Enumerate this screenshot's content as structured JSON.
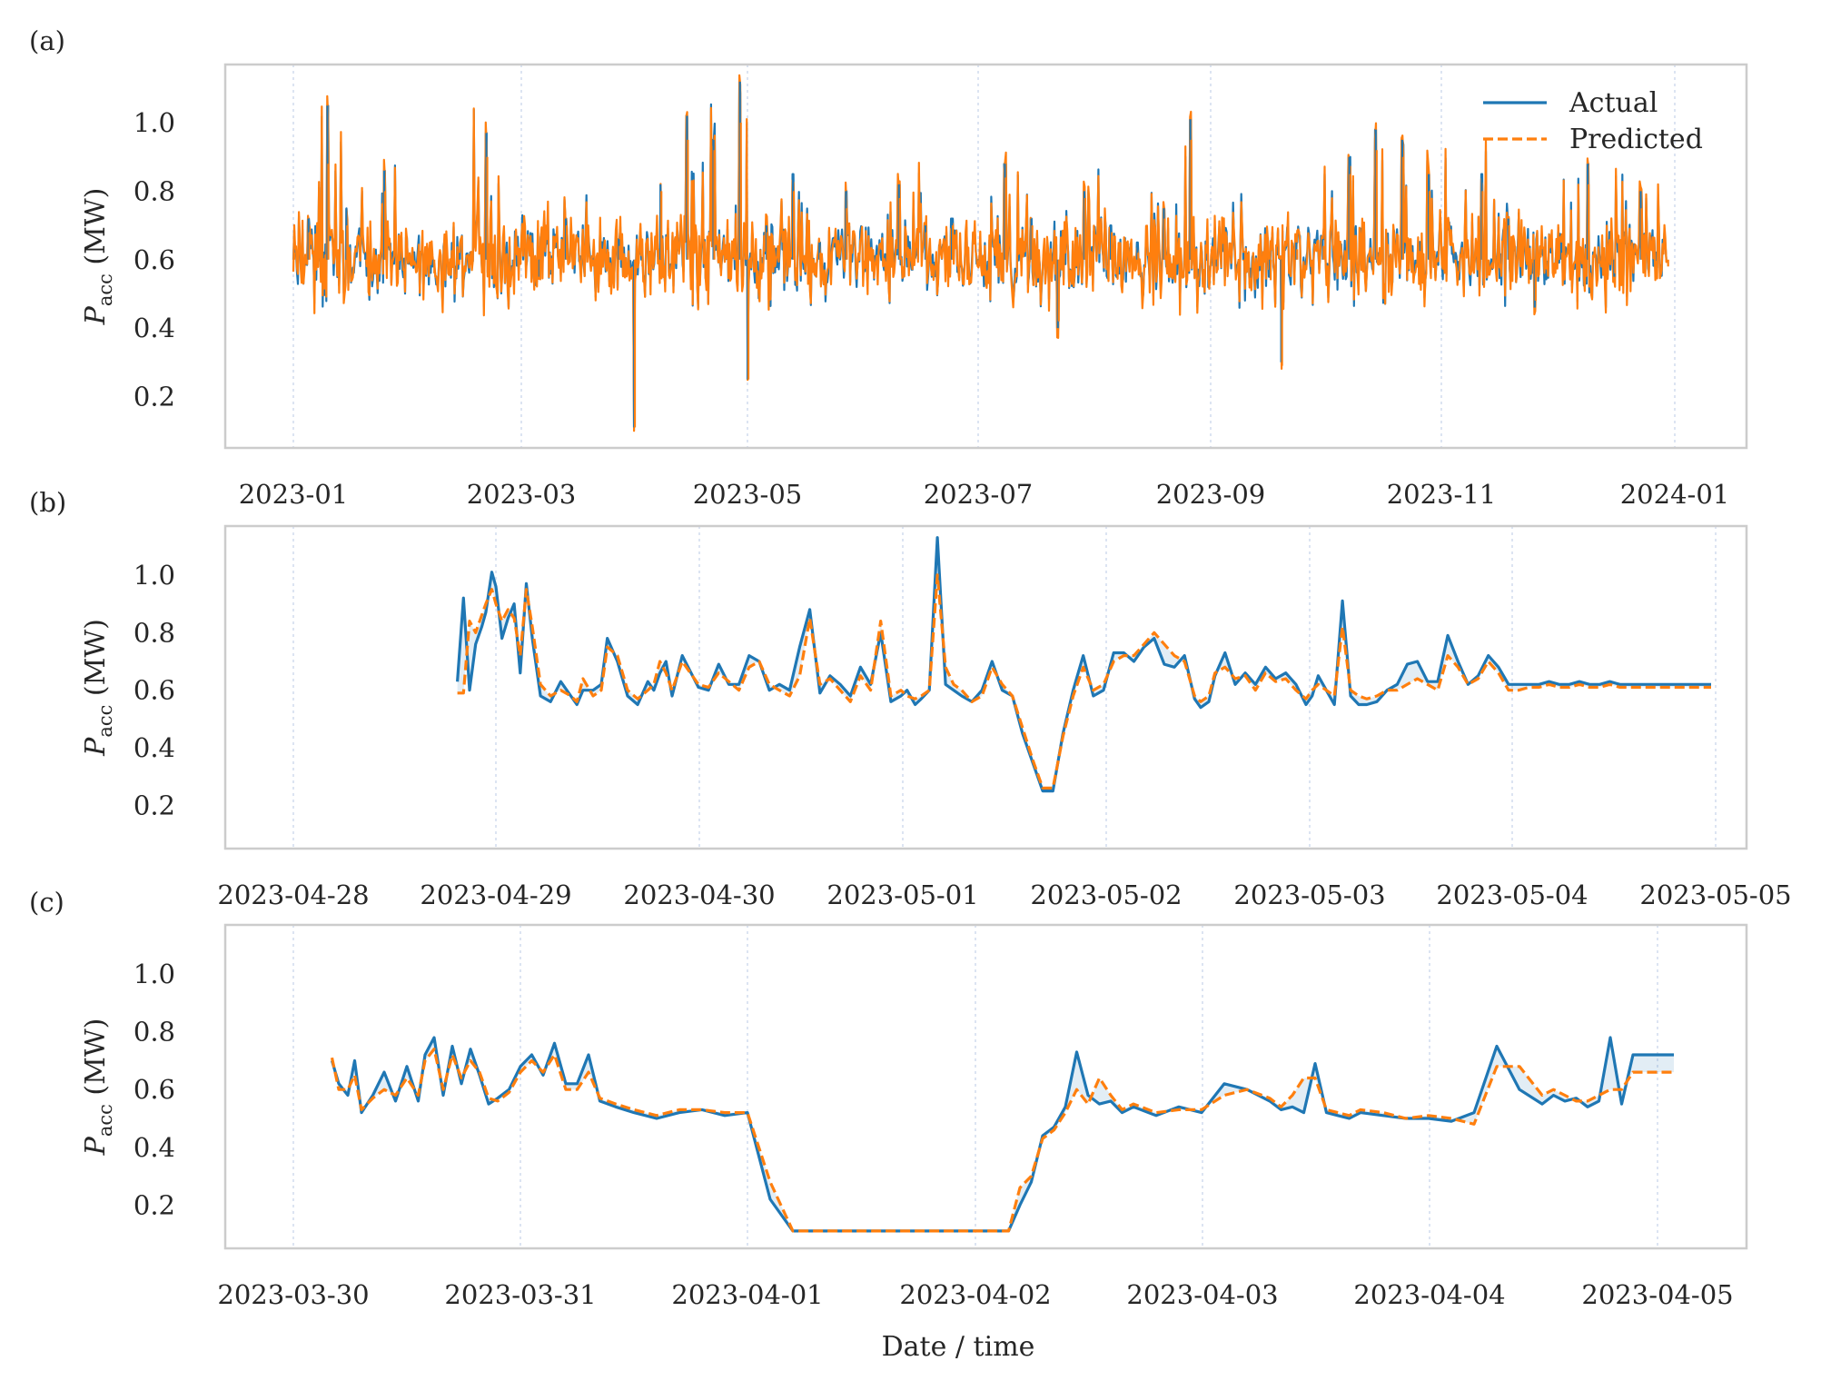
{
  "figure": {
    "xlabel": "Date / time",
    "ylabel_main": "P",
    "ylabel_sub": "acc",
    "ylabel_unit": " (MW)"
  },
  "colors": {
    "actual": "#1f77b4",
    "predicted": "#ff7f0e"
  },
  "chart_data": [
    {
      "panel": "(a)",
      "type": "line",
      "xlabel": "",
      "ylabel": "P_acc (MW)",
      "ylim": [
        0.05,
        1.17
      ],
      "yticks": [
        0.2,
        0.4,
        0.6,
        0.8,
        1.0
      ],
      "xticks": [
        "2023-01",
        "2023-03",
        "2023-05",
        "2023-07",
        "2023-09",
        "2023-11",
        "2024-01"
      ],
      "grid": "vertical-dotted",
      "legend": {
        "position": "top-right",
        "entries": [
          "Actual",
          "Predicted"
        ]
      },
      "x": [
        "2023-01-01",
        "2023-01-05",
        "2023-01-10",
        "2023-01-15",
        "2023-01-20",
        "2023-01-25",
        "2023-02-01",
        "2023-02-07",
        "2023-02-14",
        "2023-02-21",
        "2023-02-28",
        "2023-03-07",
        "2023-03-14",
        "2023-03-21",
        "2023-03-28",
        "2023-04-01",
        "2023-04-03",
        "2023-04-08",
        "2023-04-15",
        "2023-04-22",
        "2023-04-29",
        "2023-05-01",
        "2023-05-06",
        "2023-05-13",
        "2023-05-20",
        "2023-05-27",
        "2023-06-03",
        "2023-06-10",
        "2023-06-17",
        "2023-06-24",
        "2023-07-01",
        "2023-07-08",
        "2023-07-15",
        "2023-07-22",
        "2023-07-29",
        "2023-08-05",
        "2023-08-12",
        "2023-08-19",
        "2023-08-26",
        "2023-09-02",
        "2023-09-09",
        "2023-09-16",
        "2023-09-19",
        "2023-09-23",
        "2023-09-30",
        "2023-10-07",
        "2023-10-14",
        "2023-10-21",
        "2023-10-28",
        "2023-11-04",
        "2023-11-11",
        "2023-11-18",
        "2023-11-25",
        "2023-12-02",
        "2023-12-09",
        "2023-12-16",
        "2023-12-23",
        "2023-12-30"
      ],
      "series": [
        {
          "name": "Actual",
          "values": [
            0.6,
            0.72,
            1.05,
            0.75,
            0.62,
            0.86,
            0.6,
            0.58,
            0.62,
            0.97,
            0.58,
            0.55,
            0.72,
            0.6,
            0.66,
            0.11,
            0.6,
            0.82,
            1.02,
            0.95,
            1.12,
            0.25,
            0.7,
            0.85,
            0.65,
            0.8,
            0.6,
            0.82,
            0.7,
            0.72,
            0.6,
            0.88,
            0.72,
            0.4,
            0.8,
            0.7,
            0.65,
            0.75,
            1.01,
            0.58,
            0.62,
            0.55,
            0.3,
            0.65,
            0.66,
            0.9,
            0.98,
            0.95,
            0.85,
            0.62,
            0.85,
            0.72,
            0.46,
            0.65,
            0.88,
            0.55,
            0.8,
            0.6
          ]
        },
        {
          "name": "Predicted",
          "values": [
            0.62,
            0.68,
            0.88,
            0.7,
            0.6,
            0.8,
            0.58,
            0.56,
            0.6,
            0.9,
            0.56,
            0.54,
            0.7,
            0.58,
            0.64,
            0.11,
            0.58,
            0.8,
            0.95,
            0.92,
            1.0,
            0.25,
            0.68,
            0.8,
            0.62,
            0.75,
            0.58,
            0.78,
            0.68,
            0.7,
            0.58,
            0.84,
            0.7,
            0.42,
            0.78,
            0.68,
            0.62,
            0.72,
            0.95,
            0.57,
            0.6,
            0.54,
            0.29,
            0.63,
            0.64,
            0.85,
            0.92,
            0.9,
            0.8,
            0.6,
            0.8,
            0.7,
            0.48,
            0.62,
            0.82,
            0.56,
            0.75,
            0.58
          ]
        }
      ]
    },
    {
      "panel": "(b)",
      "type": "line",
      "xlabel": "",
      "ylabel": "P_acc (MW)",
      "ylim": [
        0.05,
        1.17
      ],
      "yticks": [
        0.2,
        0.4,
        0.6,
        0.8,
        1.0
      ],
      "xticks": [
        "2023-04-28",
        "2023-04-29",
        "2023-04-30",
        "2023-05-01",
        "2023-05-02",
        "2023-05-03",
        "2023-05-04",
        "2023-05-05"
      ],
      "grid": "vertical-dotted",
      "x_days_from_first_tick": [
        0.81,
        0.84,
        0.87,
        0.9,
        0.93,
        0.95,
        0.98,
        1.0,
        1.03,
        1.06,
        1.09,
        1.12,
        1.15,
        1.18,
        1.22,
        1.27,
        1.32,
        1.37,
        1.4,
        1.43,
        1.48,
        1.52,
        1.55,
        1.6,
        1.65,
        1.7,
        1.75,
        1.78,
        1.81,
        1.84,
        1.87,
        1.92,
        2.0,
        2.05,
        2.1,
        2.15,
        2.2,
        2.25,
        2.3,
        2.35,
        2.4,
        2.45,
        2.5,
        2.55,
        2.6,
        2.65,
        2.7,
        2.75,
        2.8,
        2.85,
        2.9,
        2.95,
        3.0,
        3.03,
        3.07,
        3.1,
        3.14,
        3.18,
        3.22,
        3.26,
        3.3,
        3.35,
        3.4,
        3.45,
        3.5,
        3.55,
        3.6,
        3.65,
        3.7,
        3.75,
        3.8,
        3.85,
        3.9,
        3.95,
        4.0,
        4.05,
        4.1,
        4.15,
        4.2,
        4.25,
        4.3,
        4.35,
        4.4,
        4.45,
        4.48,
        4.52,
        4.55,
        4.6,
        4.65,
        4.7,
        4.75,
        4.8,
        4.85,
        4.9,
        4.95,
        5.0,
        5.03,
        5.06,
        5.1,
        5.14,
        5.18,
        5.22,
        5.26,
        5.3,
        5.35,
        5.4,
        5.45,
        5.5,
        5.55,
        5.6,
        5.65,
        5.7,
        5.75,
        5.8,
        5.85,
        5.9,
        5.95,
        6.0,
        6.05,
        6.1,
        6.15,
        6.2,
        6.25,
        6.3,
        6.35,
        6.4,
        6.45,
        6.5,
        6.55,
        6.6,
        6.65,
        6.7,
        6.75,
        6.8,
        6.85,
        6.9,
        6.95,
        7.0
      ],
      "series": [
        {
          "name": "Actual",
          "values": [
            0.63,
            0.92,
            0.6,
            0.76,
            0.82,
            0.87,
            1.01,
            0.96,
            0.78,
            0.85,
            0.9,
            0.66,
            0.97,
            0.78,
            0.58,
            0.56,
            0.63,
            0.58,
            0.55,
            0.6,
            0.6,
            0.62,
            0.78,
            0.7,
            0.58,
            0.55,
            0.63,
            0.6,
            0.66,
            0.7,
            0.58,
            0.72,
            0.61,
            0.6,
            0.69,
            0.62,
            0.62,
            0.72,
            0.7,
            0.6,
            0.62,
            0.6,
            0.75,
            0.88,
            0.59,
            0.65,
            0.62,
            0.58,
            0.68,
            0.62,
            0.8,
            0.56,
            0.58,
            0.6,
            0.55,
            0.57,
            0.6,
            1.13,
            0.62,
            0.6,
            0.58,
            0.56,
            0.6,
            0.7,
            0.6,
            0.58,
            0.45,
            0.35,
            0.25,
            0.25,
            0.45,
            0.6,
            0.72,
            0.58,
            0.6,
            0.73,
            0.73,
            0.7,
            0.75,
            0.78,
            0.69,
            0.68,
            0.72,
            0.57,
            0.54,
            0.56,
            0.65,
            0.73,
            0.62,
            0.66,
            0.62,
            0.68,
            0.64,
            0.66,
            0.62,
            0.55,
            0.58,
            0.65,
            0.6,
            0.55,
            0.91,
            0.58,
            0.55,
            0.55,
            0.56,
            0.6,
            0.62,
            0.69,
            0.7,
            0.63,
            0.63,
            0.79,
            0.7,
            0.62,
            0.65,
            0.72,
            0.68,
            0.62,
            0.62,
            0.62,
            0.62,
            0.63,
            0.62,
            0.62,
            0.63,
            0.62,
            0.62,
            0.63,
            0.62,
            0.62,
            0.62,
            0.62,
            0.62,
            0.62,
            0.62,
            0.62,
            0.62,
            0.62,
            0.62
          ]
        },
        {
          "name": "Predicted",
          "values": [
            0.59,
            0.59,
            0.84,
            0.8,
            0.86,
            0.9,
            0.95,
            0.9,
            0.84,
            0.88,
            0.85,
            0.72,
            0.95,
            0.82,
            0.62,
            0.58,
            0.6,
            0.58,
            0.56,
            0.64,
            0.58,
            0.6,
            0.75,
            0.72,
            0.6,
            0.57,
            0.6,
            0.62,
            0.7,
            0.66,
            0.6,
            0.7,
            0.62,
            0.61,
            0.66,
            0.63,
            0.6,
            0.68,
            0.7,
            0.62,
            0.6,
            0.58,
            0.65,
            0.85,
            0.62,
            0.64,
            0.6,
            0.56,
            0.65,
            0.6,
            0.84,
            0.58,
            0.6,
            0.58,
            0.57,
            0.58,
            0.6,
            1.0,
            0.68,
            0.62,
            0.6,
            0.56,
            0.58,
            0.68,
            0.62,
            0.58,
            0.47,
            0.36,
            0.26,
            0.26,
            0.44,
            0.58,
            0.68,
            0.6,
            0.62,
            0.7,
            0.72,
            0.72,
            0.76,
            0.8,
            0.76,
            0.72,
            0.7,
            0.58,
            0.56,
            0.58,
            0.66,
            0.68,
            0.64,
            0.65,
            0.6,
            0.66,
            0.63,
            0.64,
            0.6,
            0.57,
            0.6,
            0.62,
            0.6,
            0.58,
            0.82,
            0.6,
            0.58,
            0.57,
            0.58,
            0.6,
            0.6,
            0.62,
            0.64,
            0.62,
            0.6,
            0.72,
            0.68,
            0.62,
            0.64,
            0.7,
            0.66,
            0.6,
            0.6,
            0.61,
            0.61,
            0.62,
            0.61,
            0.61,
            0.62,
            0.61,
            0.61,
            0.62,
            0.61,
            0.61,
            0.61,
            0.61,
            0.61,
            0.61,
            0.61,
            0.61,
            0.61,
            0.61,
            0.61
          ]
        }
      ]
    },
    {
      "panel": "(c)",
      "type": "line",
      "xlabel": "Date / time",
      "ylabel": "P_acc (MW)",
      "ylim": [
        0.05,
        1.17
      ],
      "yticks": [
        0.2,
        0.4,
        0.6,
        0.8,
        1.0
      ],
      "xticks": [
        "2023-03-30",
        "2023-03-31",
        "2023-04-01",
        "2023-04-02",
        "2023-04-03",
        "2023-04-04",
        "2023-04-05"
      ],
      "grid": "vertical-dotted",
      "x_days_from_first_tick": [
        0.17,
        0.2,
        0.24,
        0.27,
        0.3,
        0.35,
        0.4,
        0.45,
        0.5,
        0.55,
        0.58,
        0.62,
        0.66,
        0.7,
        0.74,
        0.78,
        0.82,
        0.86,
        0.9,
        0.95,
        1.0,
        1.05,
        1.1,
        1.15,
        1.2,
        1.25,
        1.3,
        1.35,
        1.42,
        1.5,
        1.6,
        1.7,
        1.8,
        1.9,
        2.0,
        2.1,
        2.2,
        2.28,
        2.33,
        2.37,
        2.45,
        2.6,
        2.8,
        3.0,
        3.1,
        3.15,
        3.2,
        3.25,
        3.3,
        3.35,
        3.4,
        3.45,
        3.5,
        3.55,
        3.6,
        3.65,
        3.7,
        3.8,
        3.9,
        4.0,
        4.1,
        4.2,
        4.3,
        4.35,
        4.4,
        4.45,
        4.5,
        4.55,
        4.6,
        4.65,
        4.7,
        4.8,
        4.9,
        5.0,
        5.1,
        5.2,
        5.3,
        5.4,
        5.5,
        5.55,
        5.6,
        5.65,
        5.7,
        5.75,
        5.8,
        5.85,
        5.9,
        5.95,
        6.0,
        6.05,
        6.08
      ],
      "series": [
        {
          "name": "Actual",
          "values": [
            0.7,
            0.62,
            0.58,
            0.7,
            0.52,
            0.58,
            0.66,
            0.56,
            0.68,
            0.56,
            0.72,
            0.78,
            0.58,
            0.75,
            0.62,
            0.74,
            0.65,
            0.55,
            0.57,
            0.6,
            0.68,
            0.72,
            0.65,
            0.76,
            0.62,
            0.62,
            0.72,
            0.56,
            0.54,
            0.52,
            0.5,
            0.52,
            0.53,
            0.51,
            0.52,
            0.22,
            0.11,
            0.11,
            0.11,
            0.11,
            0.11,
            0.11,
            0.11,
            0.11,
            0.11,
            0.11,
            0.2,
            0.28,
            0.44,
            0.47,
            0.54,
            0.73,
            0.58,
            0.55,
            0.56,
            0.52,
            0.54,
            0.51,
            0.54,
            0.52,
            0.62,
            0.6,
            0.56,
            0.53,
            0.54,
            0.52,
            0.69,
            0.52,
            0.51,
            0.5,
            0.52,
            0.51,
            0.5,
            0.5,
            0.49,
            0.52,
            0.75,
            0.6,
            0.55,
            0.58,
            0.56,
            0.57,
            0.54,
            0.56,
            0.78,
            0.55,
            0.72,
            0.72,
            0.72,
            0.72,
            0.72
          ]
        },
        {
          "name": "Predicted",
          "values": [
            0.71,
            0.6,
            0.6,
            0.65,
            0.53,
            0.57,
            0.6,
            0.58,
            0.64,
            0.58,
            0.7,
            0.74,
            0.6,
            0.72,
            0.64,
            0.7,
            0.66,
            0.57,
            0.56,
            0.59,
            0.66,
            0.7,
            0.66,
            0.72,
            0.6,
            0.6,
            0.66,
            0.57,
            0.55,
            0.53,
            0.51,
            0.53,
            0.53,
            0.52,
            0.52,
            0.28,
            0.11,
            0.11,
            0.11,
            0.11,
            0.11,
            0.11,
            0.11,
            0.11,
            0.11,
            0.11,
            0.26,
            0.3,
            0.43,
            0.46,
            0.52,
            0.6,
            0.55,
            0.64,
            0.58,
            0.53,
            0.55,
            0.52,
            0.53,
            0.53,
            0.58,
            0.6,
            0.57,
            0.54,
            0.58,
            0.64,
            0.64,
            0.53,
            0.52,
            0.51,
            0.53,
            0.52,
            0.5,
            0.51,
            0.5,
            0.48,
            0.68,
            0.68,
            0.58,
            0.6,
            0.58,
            0.56,
            0.56,
            0.58,
            0.6,
            0.6,
            0.66,
            0.66,
            0.66,
            0.66,
            0.66
          ]
        }
      ]
    }
  ]
}
